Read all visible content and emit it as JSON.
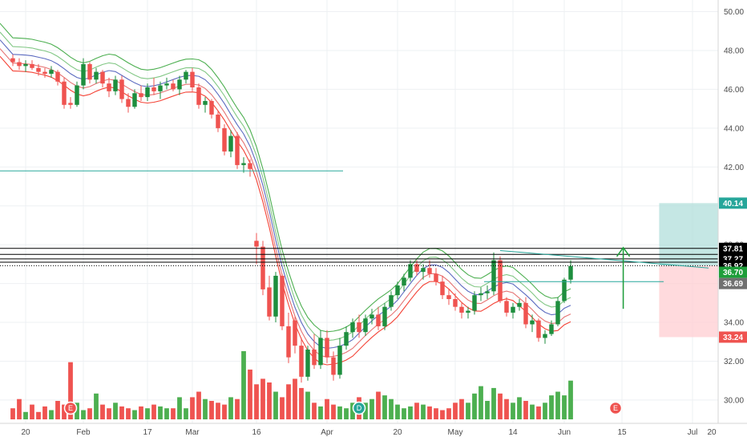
{
  "chart_data": {
    "type": "candlestick",
    "y_axis": {
      "side": "right",
      "range": [
        28.8,
        50.6
      ],
      "ticks": [
        "30.00",
        "32.00",
        "34.00",
        "36.00",
        "38.00",
        "40.00",
        "42.00",
        "44.00",
        "46.00",
        "48.00",
        "50.00"
      ]
    },
    "x_axis": {
      "range": [
        -2,
        110
      ],
      "ticks": [
        {
          "label": "20",
          "t": 2
        },
        {
          "label": "Feb",
          "t": 11
        },
        {
          "label": "17",
          "t": 21
        },
        {
          "label": "Mar",
          "t": 28
        },
        {
          "label": "16",
          "t": 38
        },
        {
          "label": "Apr",
          "t": 49
        },
        {
          "label": "20",
          "t": 60
        },
        {
          "label": "May",
          "t": 69
        },
        {
          "label": "14",
          "t": 78
        },
        {
          "label": "Jun",
          "t": 86
        },
        {
          "label": "15",
          "t": 95
        },
        {
          "label": "Jul",
          "t": 106
        },
        {
          "label": "20",
          "t": 118
        }
      ]
    },
    "candles": [
      [
        47.6,
        47.8,
        47.2,
        47.4
      ],
      [
        47.4,
        47.6,
        47.0,
        47.2
      ],
      [
        47.2,
        47.5,
        46.9,
        47.3
      ],
      [
        47.3,
        47.5,
        47.0,
        47.1
      ],
      [
        47.1,
        47.3,
        46.7,
        46.9
      ],
      [
        46.9,
        47.1,
        46.6,
        46.8
      ],
      [
        46.8,
        47.2,
        46.6,
        47.0
      ],
      [
        46.9,
        47.0,
        46.2,
        46.4
      ],
      [
        46.4,
        46.6,
        45.0,
        45.2
      ],
      [
        45.3,
        45.6,
        45.0,
        45.2
      ],
      [
        45.2,
        46.4,
        45.1,
        46.2
      ],
      [
        46.2,
        47.6,
        46.0,
        47.3
      ],
      [
        47.3,
        47.4,
        46.3,
        46.5
      ],
      [
        46.5,
        47.1,
        46.3,
        46.9
      ],
      [
        46.9,
        47.0,
        46.1,
        46.3
      ],
      [
        46.3,
        46.6,
        45.6,
        45.9
      ],
      [
        45.9,
        46.7,
        45.7,
        46.5
      ],
      [
        46.5,
        46.7,
        45.3,
        45.5
      ],
      [
        45.5,
        45.8,
        44.8,
        45.1
      ],
      [
        45.1,
        46.0,
        45.0,
        45.8
      ],
      [
        45.8,
        46.2,
        45.4,
        45.6
      ],
      [
        45.6,
        46.3,
        45.4,
        46.1
      ],
      [
        46.1,
        46.6,
        45.7,
        45.9
      ],
      [
        45.9,
        46.4,
        45.5,
        46.2
      ],
      [
        46.2,
        46.6,
        46.0,
        46.3
      ],
      [
        46.3,
        46.5,
        45.9,
        46.0
      ],
      [
        46.0,
        46.7,
        45.7,
        46.5
      ],
      [
        46.5,
        47.0,
        46.3,
        46.9
      ],
      [
        46.9,
        47.1,
        45.9,
        46.1
      ],
      [
        46.1,
        46.3,
        45.0,
        45.2
      ],
      [
        45.2,
        45.6,
        44.8,
        45.4
      ],
      [
        45.4,
        45.5,
        44.5,
        44.7
      ],
      [
        44.7,
        44.9,
        43.8,
        44.0
      ],
      [
        44.0,
        44.2,
        42.6,
        42.8
      ],
      [
        42.8,
        43.9,
        42.5,
        43.6
      ],
      [
        43.6,
        43.8,
        41.9,
        42.1
      ],
      [
        42.1,
        42.5,
        41.7,
        42.2
      ],
      [
        42.2,
        42.4,
        41.5,
        41.9
      ],
      [
        38.2,
        38.6,
        37.0,
        37.9
      ],
      [
        37.9,
        38.2,
        35.4,
        35.7
      ],
      [
        35.8,
        36.4,
        34.1,
        34.3
      ],
      [
        34.3,
        36.6,
        34.0,
        36.4
      ],
      [
        36.4,
        36.5,
        33.6,
        33.8
      ],
      [
        33.8,
        34.5,
        31.9,
        32.2
      ],
      [
        34.1,
        34.3,
        32.4,
        32.8
      ],
      [
        32.8,
        33.2,
        30.9,
        31.2
      ],
      [
        31.2,
        32.8,
        31.0,
        32.6
      ],
      [
        32.6,
        33.4,
        31.6,
        31.8
      ],
      [
        31.8,
        33.6,
        31.6,
        33.2
      ],
      [
        33.2,
        33.6,
        31.9,
        32.2
      ],
      [
        32.2,
        32.5,
        31.0,
        31.3
      ],
      [
        31.3,
        33.2,
        31.1,
        32.8
      ],
      [
        32.8,
        33.8,
        32.6,
        33.5
      ],
      [
        33.5,
        34.2,
        33.2,
        34.0
      ],
      [
        34.0,
        34.4,
        33.2,
        33.5
      ],
      [
        33.5,
        34.4,
        33.3,
        34.2
      ],
      [
        34.2,
        34.7,
        33.9,
        34.4
      ],
      [
        34.4,
        34.8,
        33.6,
        33.8
      ],
      [
        33.8,
        35.0,
        33.6,
        34.8
      ],
      [
        34.8,
        35.6,
        34.6,
        35.4
      ],
      [
        35.4,
        36.1,
        35.2,
        35.9
      ],
      [
        35.9,
        36.5,
        35.6,
        36.3
      ],
      [
        36.3,
        37.2,
        36.1,
        37.0
      ],
      [
        37.0,
        37.2,
        36.4,
        36.6
      ],
      [
        36.6,
        37.0,
        36.2,
        36.8
      ],
      [
        36.8,
        37.2,
        36.3,
        36.5
      ],
      [
        36.5,
        36.8,
        35.9,
        36.1
      ],
      [
        36.1,
        36.4,
        35.2,
        35.4
      ],
      [
        35.4,
        35.7,
        34.9,
        35.2
      ],
      [
        35.2,
        35.5,
        34.6,
        34.8
      ],
      [
        34.8,
        35.0,
        34.2,
        34.5
      ],
      [
        34.5,
        34.8,
        34.2,
        34.6
      ],
      [
        34.6,
        35.6,
        34.4,
        35.4
      ],
      [
        35.4,
        35.8,
        35.1,
        35.5
      ],
      [
        35.5,
        35.9,
        35.2,
        35.6
      ],
      [
        35.6,
        37.6,
        35.4,
        37.2
      ],
      [
        37.2,
        37.4,
        35.0,
        35.1
      ],
      [
        35.1,
        35.3,
        34.3,
        34.5
      ],
      [
        34.5,
        35.0,
        34.2,
        34.8
      ],
      [
        34.8,
        35.2,
        34.6,
        35.0
      ],
      [
        35.0,
        35.3,
        33.7,
        33.9
      ],
      [
        33.9,
        34.4,
        33.5,
        34.1
      ],
      [
        34.1,
        34.2,
        33.0,
        33.2
      ],
      [
        33.2,
        33.6,
        32.9,
        33.4
      ],
      [
        33.4,
        34.1,
        33.3,
        33.9
      ],
      [
        33.9,
        35.3,
        33.8,
        35.1
      ],
      [
        35.1,
        36.3,
        35.0,
        36.2
      ],
      [
        36.2,
        37.2,
        36.0,
        36.9
      ]
    ],
    "volume": [
      0.3,
      0.55,
      0.2,
      0.4,
      0.2,
      0.35,
      0.25,
      0.5,
      0.4,
      1.55,
      0.45,
      0.25,
      0.3,
      0.7,
      0.4,
      0.3,
      0.45,
      0.35,
      0.3,
      0.25,
      0.35,
      0.3,
      0.4,
      0.35,
      0.3,
      0.3,
      0.6,
      0.3,
      0.6,
      0.75,
      0.55,
      0.5,
      0.45,
      0.4,
      0.6,
      0.55,
      1.85,
      1.35,
      0.95,
      1.1,
      1.0,
      0.75,
      0.6,
      0.95,
      1.1,
      0.85,
      0.75,
      0.45,
      0.35,
      0.55,
      0.4,
      0.35,
      0.3,
      0.45,
      0.6,
      0.45,
      0.55,
      0.75,
      0.65,
      0.55,
      0.4,
      0.3,
      0.35,
      0.45,
      0.4,
      0.35,
      0.3,
      0.25,
      0.3,
      0.45,
      0.55,
      0.45,
      0.7,
      0.9,
      0.5,
      0.85,
      0.7,
      0.55,
      0.45,
      0.6,
      0.5,
      0.4,
      0.35,
      0.45,
      0.65,
      0.75,
      0.65,
      1.05
    ],
    "ma_bands": [
      {
        "color": "#4caf50",
        "offset": 1.3
      },
      {
        "color": "#81c784",
        "offset": 0.85
      },
      {
        "color": "#5c6bc0",
        "offset": 0.45
      },
      {
        "color": "#e57373",
        "offset": 0.0
      },
      {
        "color": "#f44336",
        "offset": -0.4
      }
    ],
    "horizontal_lines": [
      {
        "value": 37.81,
        "color": "#000000",
        "style": "solid"
      },
      {
        "value": 37.5,
        "color": "#000000",
        "style": "solid"
      },
      {
        "value": 37.27,
        "color": "#000000",
        "style": "solid"
      },
      {
        "value": 37.1,
        "color": "#000000",
        "style": "solid"
      },
      {
        "value": 36.92,
        "color": "#000000",
        "style": "dotted"
      }
    ],
    "trend_lines": [
      {
        "from": [
          -2,
          41.8
        ],
        "to": [
          51.5,
          41.8
        ],
        "color": "#26a69a"
      },
      {
        "from": [
          73.5,
          36.1
        ],
        "to": [
          101.5,
          36.1
        ],
        "color": "#26a69a"
      },
      {
        "from": [
          76,
          37.7
        ],
        "to": [
          108.5,
          36.8
        ],
        "color": "#26a69a"
      }
    ],
    "position": {
      "t_start": 100.8,
      "t_end": 110,
      "target": 40.14,
      "entry": 36.92,
      "stop": 33.24,
      "profit_color": "#b2dfdb",
      "loss_color": "#ffcdd2"
    },
    "arrow": {
      "t": 95.2,
      "from": 34.7,
      "to": 37.85,
      "color": "#1e9e3a"
    },
    "event_markers": [
      {
        "label": "E",
        "t": 9,
        "color": "#ef5350"
      },
      {
        "label": "D",
        "t": 54,
        "color": "#26a69a"
      },
      {
        "label": "E",
        "t": 94,
        "color": "#ef5350"
      }
    ],
    "price_tags": [
      {
        "label": "40.14",
        "value": 40.14,
        "color": "#26a69a"
      },
      {
        "label": "37.81",
        "value": 37.81,
        "color": "#000000"
      },
      {
        "label": "37.27",
        "value": 37.27,
        "color": "#000000"
      },
      {
        "label": "36.92",
        "value": 36.92,
        "color": "#000000"
      },
      {
        "label": "36.70",
        "value": 36.58,
        "color": "#1e9e3a"
      },
      {
        "label": "36.69",
        "value": 36.0,
        "color": "#707070"
      },
      {
        "label": "33.24",
        "value": 33.24,
        "color": "#ef5350"
      }
    ],
    "colors": {
      "up": "#26a69a",
      "up_candle": "#1e8e3e",
      "down": "#ef5350",
      "volume_up": "#4caf50",
      "volume_down": "#ef5350",
      "grid": "#eef0f3",
      "axis_text": "#4a4a4a"
    }
  }
}
